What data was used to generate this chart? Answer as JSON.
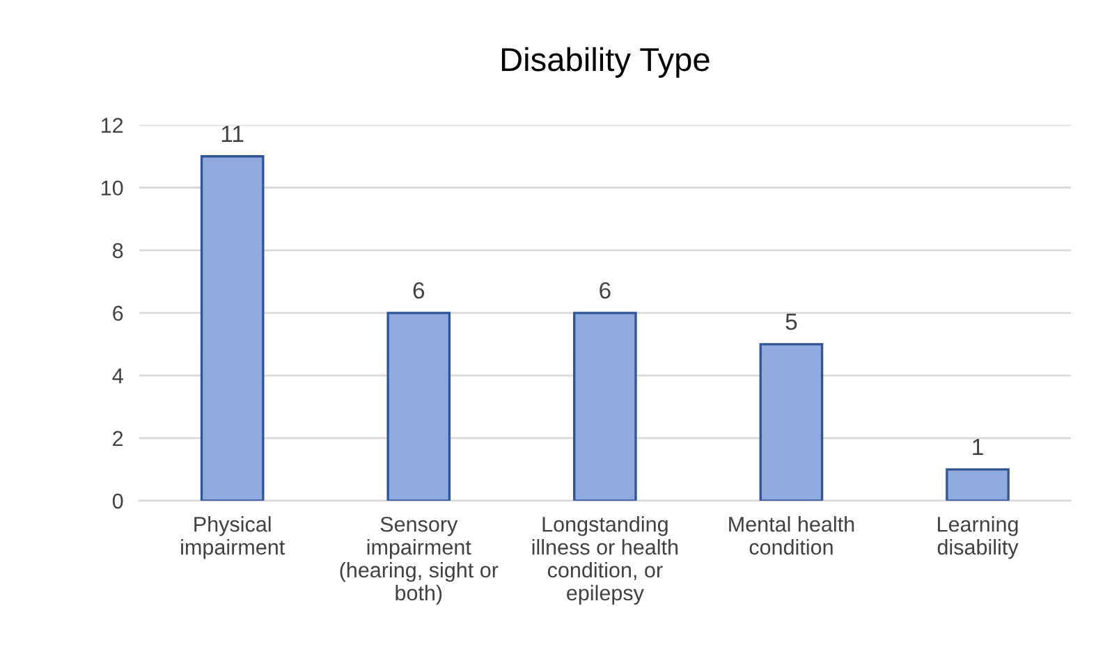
{
  "chart_data": {
    "type": "bar",
    "title": "Disability Type",
    "categories": [
      "Physical\nimpairment",
      "Sensory\nimpairment\n(hearing, sight or\nboth)",
      "Longstanding\nillness or health\ncondition, or\nepilepsy",
      "Mental health\ncondition",
      "Learning\ndisability"
    ],
    "values": [
      11,
      6,
      6,
      5,
      1
    ],
    "color": "#8faadc",
    "ylim": [
      0,
      12
    ],
    "yticks": [
      0,
      2,
      4,
      6,
      8,
      10,
      12
    ],
    "grid": "y",
    "data_labels": true
  }
}
